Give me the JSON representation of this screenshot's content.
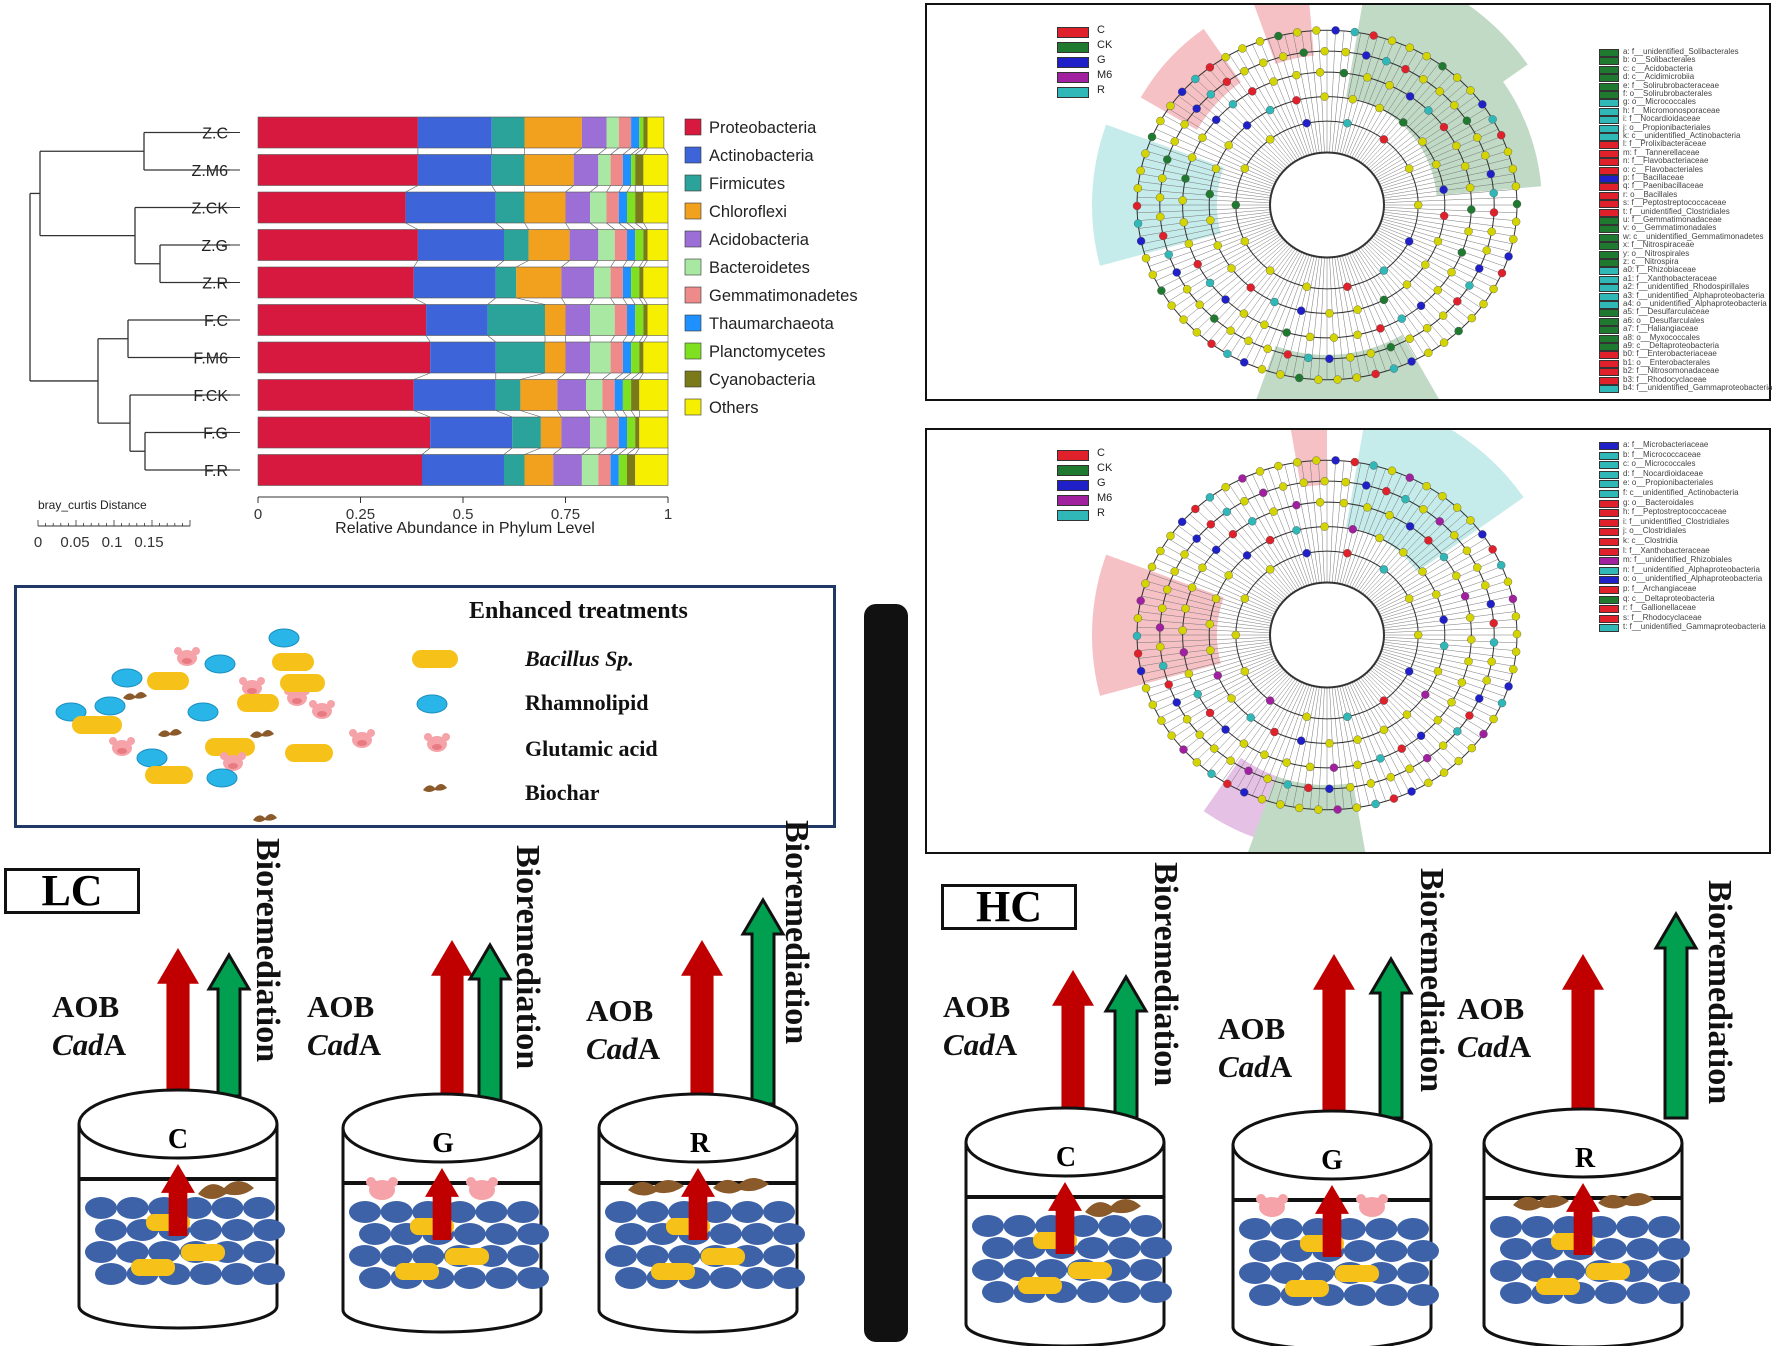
{
  "bar_chart": {
    "chart_data": {
      "type": "bar",
      "orientation": "horizontal-stacked",
      "xlabel": "Relative Abundance in Phylum Level",
      "xlim": [
        0,
        1
      ],
      "xticks": [
        "0",
        "0.25",
        "0.5",
        "0.75",
        "1"
      ],
      "categories": [
        "Z.C",
        "Z.M6",
        "Z.CK",
        "Z.G",
        "Z.R",
        "F.C",
        "F.M6",
        "F.CK",
        "F.G",
        "F.R"
      ],
      "series": [
        {
          "name": "Proteobacteria",
          "color": "#d7193f",
          "values": [
            0.39,
            0.39,
            0.36,
            0.39,
            0.38,
            0.41,
            0.42,
            0.38,
            0.42,
            0.4
          ]
        },
        {
          "name": "Actinobacteria",
          "color": "#3d64d8",
          "values": [
            0.18,
            0.18,
            0.22,
            0.21,
            0.2,
            0.15,
            0.16,
            0.2,
            0.2,
            0.2
          ]
        },
        {
          "name": "Firmicutes",
          "color": "#2ba39a",
          "values": [
            0.08,
            0.08,
            0.07,
            0.06,
            0.05,
            0.14,
            0.12,
            0.06,
            0.07,
            0.05
          ]
        },
        {
          "name": "Chloroflexi",
          "color": "#f2a11f",
          "values": [
            0.14,
            0.12,
            0.1,
            0.1,
            0.11,
            0.05,
            0.05,
            0.09,
            0.05,
            0.07
          ]
        },
        {
          "name": "Acidobacteria",
          "color": "#9b6fd6",
          "values": [
            0.06,
            0.06,
            0.06,
            0.07,
            0.08,
            0.06,
            0.06,
            0.07,
            0.07,
            0.07
          ]
        },
        {
          "name": "Bacteroidetes",
          "color": "#a8e8a3",
          "values": [
            0.03,
            0.03,
            0.04,
            0.04,
            0.04,
            0.06,
            0.05,
            0.04,
            0.04,
            0.04
          ]
        },
        {
          "name": "Gemmatimonadetes",
          "color": "#ef8a8a",
          "values": [
            0.03,
            0.03,
            0.03,
            0.03,
            0.03,
            0.03,
            0.03,
            0.03,
            0.03,
            0.03
          ]
        },
        {
          "name": "Thaumarchaeota",
          "color": "#1e90ff",
          "values": [
            0.02,
            0.02,
            0.02,
            0.02,
            0.02,
            0.02,
            0.02,
            0.02,
            0.02,
            0.02
          ]
        },
        {
          "name": "Planctomycetes",
          "color": "#7ee01e",
          "values": [
            0.01,
            0.01,
            0.02,
            0.02,
            0.02,
            0.02,
            0.02,
            0.02,
            0.02,
            0.02
          ]
        },
        {
          "name": "Cyanobacteria",
          "color": "#7a7a1a",
          "values": [
            0.01,
            0.02,
            0.02,
            0.01,
            0.01,
            0.01,
            0.01,
            0.02,
            0.01,
            0.02
          ]
        },
        {
          "name": "Others",
          "color": "#f6f000",
          "values": [
            0.04,
            0.06,
            0.06,
            0.05,
            0.06,
            0.05,
            0.06,
            0.07,
            0.07,
            0.08
          ]
        }
      ]
    },
    "scale_title": "bray_curtis Distance",
    "scale_ticks": [
      "0",
      "0.05",
      "0.1",
      "0.15"
    ]
  },
  "cladogram_top": {
    "legend": [
      {
        "label": "C",
        "color": "#e0202a"
      },
      {
        "label": "CK",
        "color": "#1f7a2f"
      },
      {
        "label": "G",
        "color": "#2020c8"
      },
      {
        "label": "M6",
        "color": "#a020a0"
      },
      {
        "label": "R",
        "color": "#30b8b8"
      }
    ],
    "taxa": [
      {
        "text": "a: f__unidentified_Solibacterales",
        "color": "#1f7a2f"
      },
      {
        "text": "b: o__Solibacterales",
        "color": "#1f7a2f"
      },
      {
        "text": "c: c__Acidobacteria",
        "color": "#1f7a2f"
      },
      {
        "text": "d: c__Acidimicrobiia",
        "color": "#1f7a2f"
      },
      {
        "text": "e: f__Solirubrobacteraceae",
        "color": "#1f7a2f"
      },
      {
        "text": "f: o__Solirubrobacterales",
        "color": "#1f7a2f"
      },
      {
        "text": "g: o__Micrococcales",
        "color": "#30b8b8"
      },
      {
        "text": "h: f__Micromonosporaceae",
        "color": "#30b8b8"
      },
      {
        "text": "i: f__Nocardioidaceae",
        "color": "#30b8b8"
      },
      {
        "text": "j: o__Propionibacteriales",
        "color": "#30b8b8"
      },
      {
        "text": "k: c__unidentified_Actinobacteria",
        "color": "#30b8b8"
      },
      {
        "text": "l: f__Prolixibacteraceae",
        "color": "#e0202a"
      },
      {
        "text": "m: f__Tannerellaceae",
        "color": "#e0202a"
      },
      {
        "text": "n: f__Flavobacteriaceae",
        "color": "#e0202a"
      },
      {
        "text": "o: c__Flavobacteriales",
        "color": "#e0202a"
      },
      {
        "text": "p: f__Bacillaceae",
        "color": "#2020c8"
      },
      {
        "text": "q: f__Paenibacillaceae",
        "color": "#e0202a"
      },
      {
        "text": "r: o__Bacillales",
        "color": "#e0202a"
      },
      {
        "text": "s: f__Peptostreptococcaceae",
        "color": "#e0202a"
      },
      {
        "text": "t: f__unidentified_Clostridiales",
        "color": "#e0202a"
      },
      {
        "text": "u: f__Gemmatimonadaceae",
        "color": "#1f7a2f"
      },
      {
        "text": "v: o__Gemmatimonadales",
        "color": "#1f7a2f"
      },
      {
        "text": "w: c__unidentified_Gemmatimonadetes",
        "color": "#1f7a2f"
      },
      {
        "text": "x: f__Nitrospiraceae",
        "color": "#1f7a2f"
      },
      {
        "text": "y: o__Nitrospirales",
        "color": "#1f7a2f"
      },
      {
        "text": "z: c__Nitrospira",
        "color": "#1f7a2f"
      },
      {
        "text": "a0: f__Rhizobiaceae",
        "color": "#30b8b8"
      },
      {
        "text": "a1: f__Xanthobacteraceae",
        "color": "#30b8b8"
      },
      {
        "text": "a2: f__unidentified_Rhodospirillales",
        "color": "#30b8b8"
      },
      {
        "text": "a3: f__unidentified_Alphaproteobacteria",
        "color": "#30b8b8"
      },
      {
        "text": "a4: o__unidentified_Alphaproteobacteria",
        "color": "#30b8b8"
      },
      {
        "text": "a5: f__Desulfarculaceae",
        "color": "#1f7a2f"
      },
      {
        "text": "a6: o__Desulfarculales",
        "color": "#1f7a2f"
      },
      {
        "text": "a7: f__Haliangiaceae",
        "color": "#1f7a2f"
      },
      {
        "text": "a8: o__Myxococcales",
        "color": "#1f7a2f"
      },
      {
        "text": "a9: c__Deltaproteobacteria",
        "color": "#1f7a2f"
      },
      {
        "text": "b0: f__Enterobacteriaceae",
        "color": "#e0202a"
      },
      {
        "text": "b1: o__Enterobacterales",
        "color": "#e0202a"
      },
      {
        "text": "b2: f__Nitrosomonadaceae",
        "color": "#e0202a"
      },
      {
        "text": "b3: f__Rhodocyclaceae",
        "color": "#e0202a"
      },
      {
        "text": "b4: f__unidentified_Gammaproteobacteria",
        "color": "#30b8b8"
      }
    ]
  },
  "cladogram_bottom": {
    "legend": [
      {
        "label": "C",
        "color": "#e0202a"
      },
      {
        "label": "CK",
        "color": "#1f7a2f"
      },
      {
        "label": "G",
        "color": "#2020c8"
      },
      {
        "label": "M6",
        "color": "#a020a0"
      },
      {
        "label": "R",
        "color": "#30b8b8"
      }
    ],
    "taxa": [
      {
        "text": "a: f__Microbacteriaceae",
        "color": "#2020c8"
      },
      {
        "text": "b: f__Micrococcaceae",
        "color": "#30b8b8"
      },
      {
        "text": "c: o__Micrococcales",
        "color": "#30b8b8"
      },
      {
        "text": "d: f__Nocardioidaceae",
        "color": "#30b8b8"
      },
      {
        "text": "e: o__Propionibacteriales",
        "color": "#30b8b8"
      },
      {
        "text": "f: c__unidentified_Actinobacteria",
        "color": "#30b8b8"
      },
      {
        "text": "g: o__Bacteroidales",
        "color": "#e0202a"
      },
      {
        "text": "h: f__Peptostreptococcaceae",
        "color": "#e0202a"
      },
      {
        "text": "i: f__unidentified_Clostridiales",
        "color": "#e0202a"
      },
      {
        "text": "j: o__Clostridiales",
        "color": "#e0202a"
      },
      {
        "text": "k: c__Clostridia",
        "color": "#e0202a"
      },
      {
        "text": "l: f__Xanthobacteraceae",
        "color": "#e0202a"
      },
      {
        "text": "m: f__unidentified_Rhizobiales",
        "color": "#a020a0"
      },
      {
        "text": "n: f__unidentified_Alphaproteobacteria",
        "color": "#30b8b8"
      },
      {
        "text": "o: o__unidentified_Alphaproteobacteria",
        "color": "#2020c8"
      },
      {
        "text": "p: f__Archangiaceae",
        "color": "#e0202a"
      },
      {
        "text": "q: c__Deltaproteobacteria",
        "color": "#1f7a2f"
      },
      {
        "text": "r: f__Gallionellaceae",
        "color": "#e0202a"
      },
      {
        "text": "s: f__Rhodocyclaceae",
        "color": "#e0202a"
      },
      {
        "text": "t: f__unidentified_Gammaproteobacteria",
        "color": "#30b8b8"
      }
    ]
  },
  "enhanced": {
    "title": "Enhanced treatments",
    "items": [
      {
        "label": "Bacillus Sp.",
        "italic": true,
        "icon": "bacillus-capsule"
      },
      {
        "label": "Rhamnolipid",
        "italic": false,
        "icon": "rhamnolipid-ellipse"
      },
      {
        "label": "Glutamic acid",
        "italic": false,
        "icon": "pig-face"
      },
      {
        "label": "Biochar",
        "italic": false,
        "icon": "biochar-flake"
      }
    ]
  },
  "panels": {
    "lc_label": "LC",
    "hc_label": "HC",
    "bioremediation": "Bioremediation",
    "aob": "AOB",
    "cad_italic": "Cad",
    "cad_suffix": "A",
    "lc_containers": [
      {
        "label": "C",
        "aob_level": 0.55,
        "bio_level": 0.45
      },
      {
        "label": "G",
        "aob_level": 0.65,
        "bio_level": 0.55
      },
      {
        "label": "R",
        "aob_level": 0.65,
        "bio_level": 0.8
      }
    ],
    "hc_containers": [
      {
        "label": "C",
        "aob_level": 0.55,
        "bio_level": 0.45
      },
      {
        "label": "G",
        "aob_level": 0.65,
        "bio_level": 0.55
      },
      {
        "label": "R",
        "aob_level": 0.65,
        "bio_level": 0.8
      }
    ]
  },
  "colors": {
    "red_arrow": "#c00000",
    "green_arrow": "#00a050",
    "bacillus": "#f6c21a",
    "rhamnolipid": "#29b5e8",
    "soil": "#3d62a8",
    "biochar": "#8a5a2b",
    "pig": "#f5a3a8",
    "divider": "#111111",
    "panel_border": "#1f3864"
  }
}
